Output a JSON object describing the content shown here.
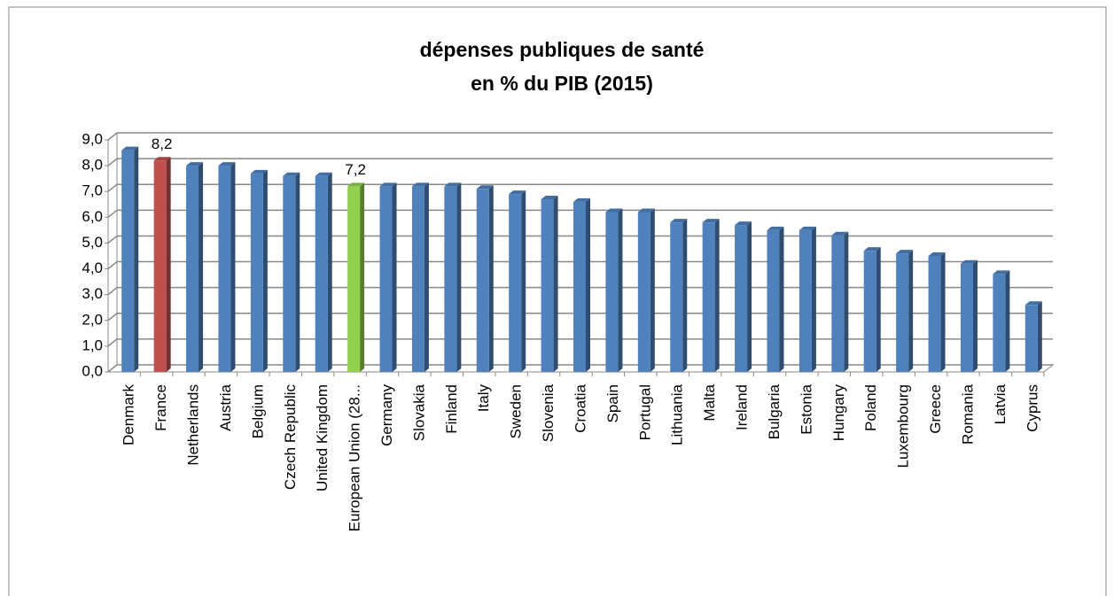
{
  "chart_data": {
    "type": "bar",
    "title": [
      "dépenses publiques de santé",
      "en % du PIB (2015)"
    ],
    "categories": [
      "Denmark",
      "France",
      "Netherlands",
      "Austria",
      "Belgium",
      "Czech Republic",
      "United Kingdom",
      "European Union (28...",
      "Germany",
      "Slovakia",
      "Finland",
      "Italy",
      "Sweden",
      "Slovenia",
      "Croatia",
      "Spain",
      "Portugal",
      "Lithuania",
      "Malta",
      "Ireland",
      "Bulgaria",
      "Estonia",
      "Hungary",
      "Poland",
      "Luxembourg",
      "Greece",
      "Romania",
      "Latvia",
      "Cyprus"
    ],
    "values": [
      8.6,
      8.2,
      8.0,
      8.0,
      7.7,
      7.6,
      7.6,
      7.2,
      7.2,
      7.2,
      7.2,
      7.1,
      6.9,
      6.7,
      6.6,
      6.2,
      6.2,
      5.8,
      5.8,
      5.7,
      5.5,
      5.5,
      5.3,
      4.7,
      4.6,
      4.5,
      4.2,
      3.8,
      2.6
    ],
    "value_labels": [
      null,
      "8,2",
      null,
      null,
      null,
      null,
      null,
      "7,2",
      null,
      null,
      null,
      null,
      null,
      null,
      null,
      null,
      null,
      null,
      null,
      null,
      null,
      null,
      null,
      null,
      null,
      null,
      null,
      null,
      null
    ],
    "colors": [
      "#4f81bd",
      "#c0504d",
      "#4f81bd",
      "#4f81bd",
      "#4f81bd",
      "#4f81bd",
      "#4f81bd",
      "#92d050",
      "#4f81bd",
      "#4f81bd",
      "#4f81bd",
      "#4f81bd",
      "#4f81bd",
      "#4f81bd",
      "#4f81bd",
      "#4f81bd",
      "#4f81bd",
      "#4f81bd",
      "#4f81bd",
      "#4f81bd",
      "#4f81bd",
      "#4f81bd",
      "#4f81bd",
      "#4f81bd",
      "#4f81bd",
      "#4f81bd",
      "#4f81bd",
      "#4f81bd",
      "#4f81bd"
    ],
    "ylim": [
      0,
      9
    ],
    "yticks": [
      {
        "value": 0,
        "label": "0,0"
      },
      {
        "value": 1,
        "label": "1,0"
      },
      {
        "value": 2,
        "label": "2,0"
      },
      {
        "value": 3,
        "label": "3,0"
      },
      {
        "value": 4,
        "label": "4,0"
      },
      {
        "value": 5,
        "label": "5,0"
      },
      {
        "value": 6,
        "label": "6,0"
      },
      {
        "value": 7,
        "label": "7,0"
      },
      {
        "value": 8,
        "label": "8,0"
      },
      {
        "value": 9,
        "label": "9,0"
      }
    ],
    "grid": true
  }
}
